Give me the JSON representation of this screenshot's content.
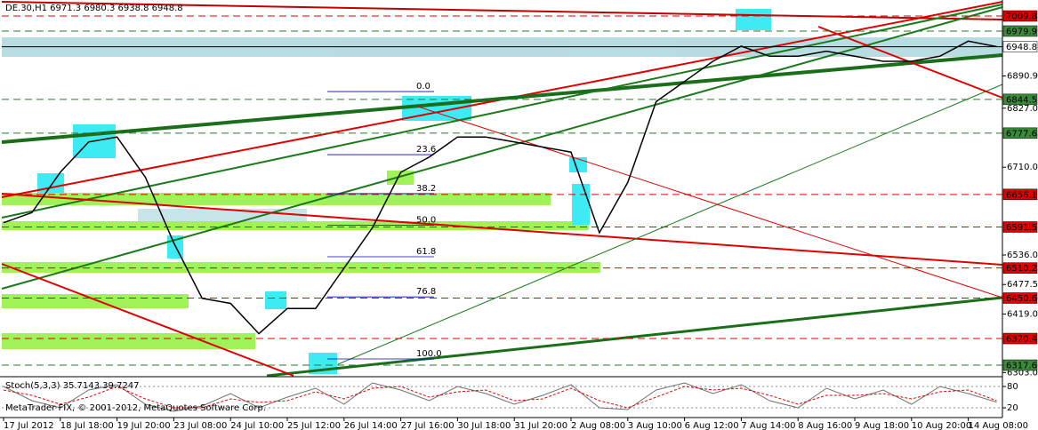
{
  "chart_data": [
    {
      "type": "line",
      "title": "DE.30,H1  6971.3 6980.3 6938.8 6948.8",
      "annotation": "MetaTrader FIX, © 2001-2012, MetaQuotes Software Corp.",
      "categories": [
        "17 Jul 2012",
        null,
        "18 Jul 18:00",
        null,
        "19 Jul 20:00",
        null,
        "23 Jul 08:00",
        null,
        "24 Jul 10:00",
        null,
        "25 Jul 12:00",
        null,
        "26 Jul 14:00",
        null,
        "27 Jul 16:00",
        null,
        "30 Jul 18:00",
        null,
        "31 Jul 20:00",
        null,
        "2 Aug 08:00",
        null,
        "3 Aug 10:00",
        null,
        "6 Aug 12:00",
        null,
        "7 Aug 14:00",
        null,
        "8 Aug 16:00",
        null,
        "9 Aug 18:00",
        null,
        "10 Aug 20:00",
        null,
        "14 Aug 08:00",
        null
      ],
      "series": [
        {
          "name": "DE.30",
          "color": "#000000",
          "values": [
            6600,
            6620,
            6700,
            6760,
            6770,
            6690,
            6560,
            6450,
            6440,
            6380,
            6430,
            6430,
            6510,
            6590,
            6700,
            6730,
            6770,
            6770,
            6760,
            6750,
            6740,
            6580,
            6680,
            6840,
            6880,
            6920,
            6950,
            6930,
            6930,
            6940,
            6930,
            6920,
            6920,
            6930,
            6960,
            6949
          ]
        }
      ],
      "ylim": [
        6296.5,
        7041.5
      ],
      "yticks": [
        {
          "value": 6890.9,
          "label": "6890.9"
        },
        {
          "value": 6827,
          "label": "6827.0"
        },
        {
          "value": 6710,
          "label": "6710.0"
        },
        {
          "value": 6536,
          "label": "6536.0"
        },
        {
          "value": 6477.5,
          "label": "6477.5"
        },
        {
          "value": 6419,
          "label": "6419.0"
        },
        {
          "value": 6303,
          "label": "6303.0"
        }
      ],
      "levels": [
        {
          "value": 7009.8,
          "label": "7009.8",
          "color": "#e00000"
        },
        {
          "value": 6979.9,
          "label": "6979.9",
          "color": "#3a8a3a"
        },
        {
          "value": 6948.8,
          "label": "6948.8",
          "color": "#ffffff"
        },
        {
          "value": 6844.5,
          "label": "6844.5",
          "color": "#3a8a3a"
        },
        {
          "value": 6777.6,
          "label": "6777.6",
          "color": "#3a8a3a"
        },
        {
          "value": 6656.1,
          "label": "6656.1",
          "color": "#e00000"
        },
        {
          "value": 6591.5,
          "label": "6591.5",
          "color": "#e00000"
        },
        {
          "value": 6510.2,
          "label": "6510.2",
          "color": "#e00000"
        },
        {
          "value": 6450.6,
          "label": "6450.6",
          "color": "#e00000"
        },
        {
          "value": 6370.4,
          "label": "6370.4",
          "color": "#e00000"
        },
        {
          "value": 6317.6,
          "label": "6317.6",
          "color": "#3a8a3a"
        }
      ],
      "fibonacci": {
        "high": 6860,
        "low": 6330,
        "levels": [
          {
            "value": 0,
            "label": "0.0"
          },
          23.6,
          38.2,
          {
            "value": 50,
            "label": "50.0"
          },
          61.8,
          76.8,
          {
            "value": 100,
            "label": "100.0"
          }
        ]
      }
    },
    {
      "type": "line",
      "title": "Stoch(5,3,3) 35.7143 39.7247",
      "series": [
        {
          "name": "Main",
          "color": "#707070",
          "values": [
            80,
            40,
            20,
            70,
            85,
            30,
            10,
            25,
            60,
            20,
            50,
            75,
            30,
            90,
            70,
            40,
            80,
            60,
            30,
            55,
            85,
            20,
            15,
            70,
            90,
            60,
            85,
            40,
            20,
            75,
            45,
            70,
            30,
            80,
            60,
            36
          ]
        },
        {
          "name": "Signal",
          "color": "#e00000",
          "values": [
            70,
            55,
            30,
            50,
            80,
            45,
            20,
            20,
            45,
            35,
            40,
            65,
            45,
            75,
            80,
            50,
            65,
            70,
            40,
            45,
            75,
            40,
            20,
            50,
            80,
            70,
            75,
            55,
            30,
            55,
            55,
            60,
            45,
            65,
            70,
            40
          ]
        }
      ],
      "ylim": [
        0,
        100
      ],
      "yticks": [
        20,
        80
      ]
    }
  ]
}
